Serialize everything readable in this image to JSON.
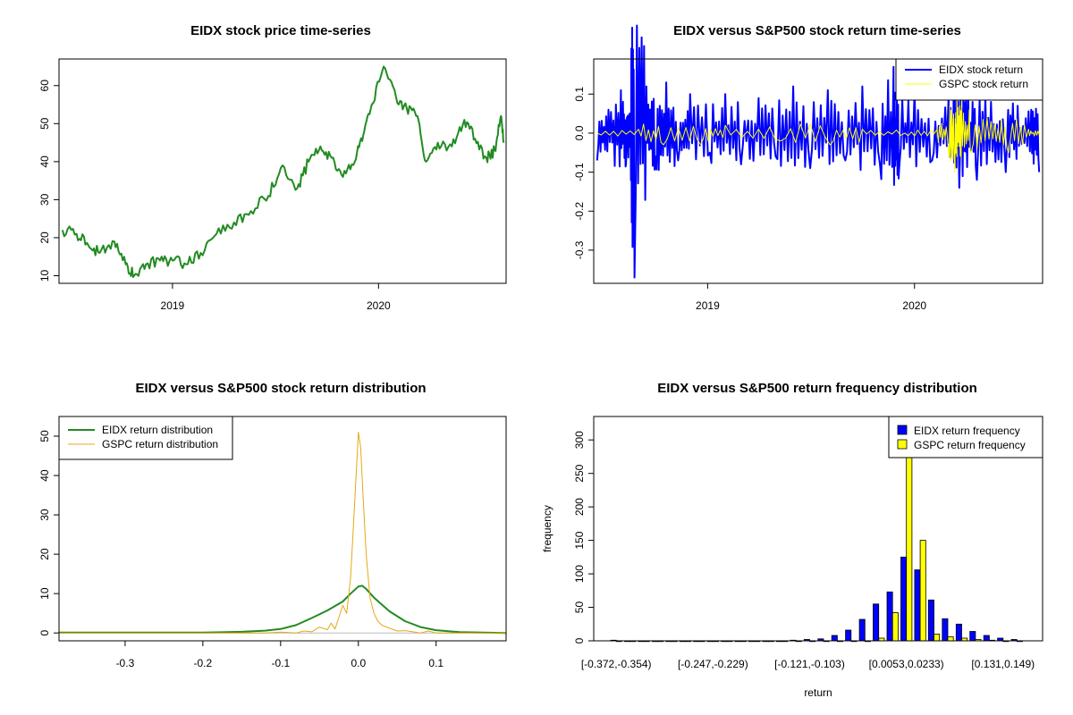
{
  "colors": {
    "eidx_price": "#228B22",
    "eidx_return": "#0000FF",
    "gspc_return": "#FFFF00",
    "eidx_density": "#228B22",
    "gspc_density": "#E6A817",
    "eidx_bar": "#0000FF",
    "gspc_bar": "#FFFF00"
  },
  "chart_data": [
    {
      "type": "line",
      "title": "EIDX stock price time-series",
      "xlabel": "",
      "ylabel": "",
      "xlim": [
        "2018-06-14",
        "2020-08-14"
      ],
      "ylim": [
        8,
        67
      ],
      "xticks": [
        {
          "value": "2019-01-01",
          "label": "2019"
        },
        {
          "value": "2020-01-01",
          "label": "2020"
        }
      ],
      "yticks": [
        10,
        20,
        30,
        40,
        50,
        60
      ],
      "series": [
        {
          "color": "eidx_price",
          "x": [
            "2018-06-20",
            "2018-07-15",
            "2018-08-05",
            "2018-08-25",
            "2018-09-20",
            "2018-10-10",
            "2018-10-25",
            "2018-11-15",
            "2018-12-10",
            "2019-01-01",
            "2019-01-25",
            "2019-02-20",
            "2019-03-20",
            "2019-04-20",
            "2019-05-20",
            "2019-06-20",
            "2019-07-15",
            "2019-08-10",
            "2019-08-30",
            "2019-09-20",
            "2019-10-10",
            "2019-10-30",
            "2019-11-20",
            "2019-12-05",
            "2019-12-20",
            "2020-01-10",
            "2020-02-01",
            "2020-02-20",
            "2020-03-10",
            "2020-03-25",
            "2020-04-15",
            "2020-05-10",
            "2020-06-01",
            "2020-06-20",
            "2020-07-10",
            "2020-07-25",
            "2020-08-05",
            "2020-08-10"
          ],
          "y": [
            22,
            21,
            18,
            16,
            19,
            13,
            10,
            13,
            14,
            14,
            13,
            16,
            21,
            24,
            27,
            31,
            39,
            33,
            40,
            44,
            41,
            36,
            40,
            47,
            55,
            65,
            57,
            54,
            52,
            40,
            45,
            44,
            51,
            46,
            41,
            43,
            52,
            45
          ]
        }
      ]
    },
    {
      "type": "line",
      "title": "EIDX versus S&P500 stock return time-series",
      "xlabel": "",
      "ylabel": "",
      "xlim": [
        "2018-06-14",
        "2020-08-14"
      ],
      "ylim": [
        -0.385,
        0.19
      ],
      "xticks": [
        {
          "value": "2019-01-01",
          "label": "2019"
        },
        {
          "value": "2020-01-01",
          "label": "2020"
        }
      ],
      "yticks": [
        -0.3,
        -0.2,
        -0.1,
        0.0,
        0.1
      ],
      "ytick_labels": [
        "-0.3",
        "-0.2",
        "-0.1",
        "0.0",
        "0.1"
      ],
      "legend": {
        "position": "top-right",
        "entries": [
          "EIDX stock return",
          "GSPC stock return"
        ]
      },
      "series": [
        {
          "name": "EIDX stock return",
          "color": "eidx_return",
          "x": [
            "2018-06-20",
            "2018-07-10",
            "2018-08-01",
            "2018-08-10",
            "2018-08-18",
            "2018-08-25",
            "2018-09-15",
            "2018-10-01",
            "2018-10-20",
            "2018-11-10",
            "2018-12-01",
            "2019-01-05",
            "2019-02-01",
            "2019-03-01",
            "2019-04-01",
            "2019-05-01",
            "2019-06-01",
            "2019-07-01",
            "2019-08-01",
            "2019-09-01",
            "2019-10-01",
            "2019-11-01",
            "2019-11-25",
            "2019-12-05",
            "2020-01-01",
            "2020-02-01",
            "2020-03-01",
            "2020-03-10",
            "2020-03-20",
            "2020-04-01",
            "2020-04-20",
            "2020-05-15",
            "2020-06-10",
            "2020-07-01",
            "2020-07-25",
            "2020-08-08"
          ],
          "y": [
            -0.07,
            0.06,
            0.11,
            -0.08,
            0.05,
            -0.37,
            0.12,
            -0.06,
            0.13,
            -0.07,
            0.1,
            -0.05,
            0.1,
            -0.08,
            0.09,
            -0.06,
            0.12,
            -0.09,
            0.11,
            -0.07,
            0.12,
            -0.08,
            0.17,
            -0.09,
            0.11,
            -0.07,
            0.09,
            0.1,
            -0.14,
            0.1,
            -0.12,
            0.08,
            -0.1,
            0.07,
            0.06,
            -0.1
          ]
        },
        {
          "name": "GSPC stock return",
          "color": "gspc_return",
          "x": [
            "2018-06-20",
            "2018-09-01",
            "2018-10-15",
            "2018-12-20",
            "2019-02-01",
            "2019-05-10",
            "2019-08-05",
            "2019-10-01",
            "2019-12-15",
            "2020-02-10",
            "2020-03-01",
            "2020-03-12",
            "2020-03-16",
            "2020-03-24",
            "2020-04-10",
            "2020-05-15",
            "2020-06-15",
            "2020-07-20",
            "2020-08-10"
          ],
          "y": [
            0.0,
            0.01,
            -0.03,
            -0.03,
            0.02,
            -0.02,
            -0.03,
            0.01,
            0.0,
            0.01,
            -0.05,
            -0.1,
            0.09,
            0.09,
            -0.05,
            0.03,
            -0.05,
            0.01,
            0.0
          ]
        }
      ]
    },
    {
      "type": "line",
      "title": "EIDX versus S&P500 stock return distribution",
      "xlabel": "",
      "ylabel": "",
      "xlim": [
        -0.385,
        0.19
      ],
      "ylim": [
        -2,
        55
      ],
      "xticks": [
        -0.3,
        -0.2,
        -0.1,
        0.0,
        0.1
      ],
      "xtick_labels": [
        "-0.3",
        "-0.2",
        "-0.1",
        "0.0",
        "0.1"
      ],
      "yticks": [
        0,
        10,
        20,
        30,
        40,
        50
      ],
      "legend": {
        "position": "top-left",
        "entries": [
          "EIDX return distribution",
          "GSPC return distribution"
        ]
      },
      "series": [
        {
          "name": "EIDX return distribution",
          "color": "eidx_density",
          "x": [
            -0.385,
            -0.2,
            -0.15,
            -0.12,
            -0.1,
            -0.08,
            -0.06,
            -0.04,
            -0.02,
            -0.01,
            0.0,
            0.005,
            0.01,
            0.02,
            0.04,
            0.06,
            0.08,
            0.1,
            0.13,
            0.19
          ],
          "y": [
            0.1,
            0.1,
            0.3,
            0.6,
            1.0,
            2.0,
            3.8,
            5.7,
            8.0,
            10.0,
            11.8,
            12.0,
            11.2,
            9.0,
            5.5,
            3.0,
            1.5,
            0.7,
            0.2,
            0.0
          ]
        },
        {
          "name": "GSPC return distribution",
          "color": "gspc_density",
          "x": [
            -0.385,
            -0.12,
            -0.1,
            -0.08,
            -0.07,
            -0.06,
            -0.05,
            -0.04,
            -0.035,
            -0.03,
            -0.025,
            -0.02,
            -0.015,
            -0.01,
            -0.005,
            0.0,
            0.003,
            0.006,
            0.01,
            0.015,
            0.02,
            0.025,
            0.03,
            0.04,
            0.05,
            0.06,
            0.07,
            0.08,
            0.09,
            0.1,
            0.19
          ],
          "y": [
            0.0,
            0.0,
            0.2,
            0.0,
            0.5,
            0.3,
            1.5,
            0.8,
            2.5,
            1.0,
            4.0,
            7.0,
            5.0,
            14.0,
            32.0,
            51.0,
            47.0,
            35.0,
            20.0,
            9.0,
            5.0,
            3.0,
            2.0,
            1.2,
            0.5,
            0.6,
            0.3,
            0.0,
            0.5,
            0.0,
            0.0
          ]
        }
      ]
    },
    {
      "type": "bar",
      "title": "EIDX versus S&P500 return frequency distribution",
      "xlabel": "return",
      "ylabel": "frequency",
      "ylim": [
        0,
        335
      ],
      "yticks": [
        0,
        50,
        100,
        150,
        200,
        250,
        300
      ],
      "legend": {
        "position": "top-right",
        "entries": [
          "EIDX return frequency",
          "GSPC return frequency"
        ]
      },
      "category_labels_shown": [
        {
          "index": 0,
          "label": "[-0.372,-0.354)"
        },
        {
          "index": 7,
          "label": "[-0.247,-0.229)"
        },
        {
          "index": 14,
          "label": "[-0.121,-0.103)"
        },
        {
          "index": 21,
          "label": "[0.0053,0.0233)"
        },
        {
          "index": 28,
          "label": "[0.131,0.149)"
        }
      ],
      "series": [
        {
          "name": "EIDX return frequency",
          "color": "eidx_bar",
          "values": [
            1,
            0,
            0,
            0,
            0,
            0,
            0,
            0,
            0,
            0,
            0,
            0,
            0,
            1,
            2,
            3,
            8,
            16,
            32,
            55,
            73,
            125,
            106,
            61,
            33,
            25,
            14,
            8,
            4,
            2
          ]
        },
        {
          "name": "GSPC return frequency",
          "color": "gspc_bar",
          "values": [
            0,
            0,
            0,
            0,
            0,
            0,
            0,
            0,
            0,
            0,
            0,
            0,
            0,
            0,
            0,
            0,
            0,
            0,
            0,
            4,
            42,
            320,
            150,
            10,
            6,
            4,
            2,
            1,
            0,
            0
          ]
        }
      ]
    }
  ]
}
